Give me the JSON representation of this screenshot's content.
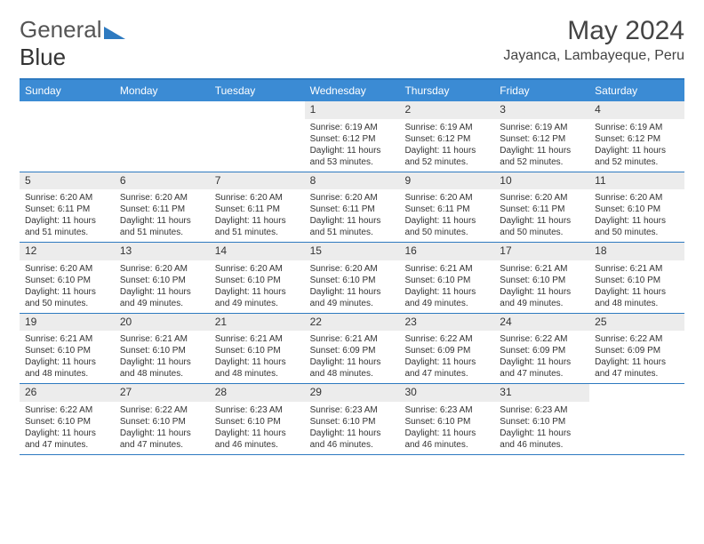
{
  "logo": {
    "text1": "General",
    "text2": "Blue"
  },
  "title": "May 2024",
  "location": "Jayanca, Lambayeque, Peru",
  "colors": {
    "header_bg": "#3b8bd4",
    "border": "#2e7ac0",
    "daynum_bg": "#ececec",
    "text": "#333333"
  },
  "day_headers": [
    "Sunday",
    "Monday",
    "Tuesday",
    "Wednesday",
    "Thursday",
    "Friday",
    "Saturday"
  ],
  "weeks": [
    [
      {
        "day": "",
        "sunrise": "",
        "sunset": "",
        "daylight": ""
      },
      {
        "day": "",
        "sunrise": "",
        "sunset": "",
        "daylight": ""
      },
      {
        "day": "",
        "sunrise": "",
        "sunset": "",
        "daylight": ""
      },
      {
        "day": "1",
        "sunrise": "Sunrise: 6:19 AM",
        "sunset": "Sunset: 6:12 PM",
        "daylight": "Daylight: 11 hours and 53 minutes."
      },
      {
        "day": "2",
        "sunrise": "Sunrise: 6:19 AM",
        "sunset": "Sunset: 6:12 PM",
        "daylight": "Daylight: 11 hours and 52 minutes."
      },
      {
        "day": "3",
        "sunrise": "Sunrise: 6:19 AM",
        "sunset": "Sunset: 6:12 PM",
        "daylight": "Daylight: 11 hours and 52 minutes."
      },
      {
        "day": "4",
        "sunrise": "Sunrise: 6:19 AM",
        "sunset": "Sunset: 6:12 PM",
        "daylight": "Daylight: 11 hours and 52 minutes."
      }
    ],
    [
      {
        "day": "5",
        "sunrise": "Sunrise: 6:20 AM",
        "sunset": "Sunset: 6:11 PM",
        "daylight": "Daylight: 11 hours and 51 minutes."
      },
      {
        "day": "6",
        "sunrise": "Sunrise: 6:20 AM",
        "sunset": "Sunset: 6:11 PM",
        "daylight": "Daylight: 11 hours and 51 minutes."
      },
      {
        "day": "7",
        "sunrise": "Sunrise: 6:20 AM",
        "sunset": "Sunset: 6:11 PM",
        "daylight": "Daylight: 11 hours and 51 minutes."
      },
      {
        "day": "8",
        "sunrise": "Sunrise: 6:20 AM",
        "sunset": "Sunset: 6:11 PM",
        "daylight": "Daylight: 11 hours and 51 minutes."
      },
      {
        "day": "9",
        "sunrise": "Sunrise: 6:20 AM",
        "sunset": "Sunset: 6:11 PM",
        "daylight": "Daylight: 11 hours and 50 minutes."
      },
      {
        "day": "10",
        "sunrise": "Sunrise: 6:20 AM",
        "sunset": "Sunset: 6:11 PM",
        "daylight": "Daylight: 11 hours and 50 minutes."
      },
      {
        "day": "11",
        "sunrise": "Sunrise: 6:20 AM",
        "sunset": "Sunset: 6:10 PM",
        "daylight": "Daylight: 11 hours and 50 minutes."
      }
    ],
    [
      {
        "day": "12",
        "sunrise": "Sunrise: 6:20 AM",
        "sunset": "Sunset: 6:10 PM",
        "daylight": "Daylight: 11 hours and 50 minutes."
      },
      {
        "day": "13",
        "sunrise": "Sunrise: 6:20 AM",
        "sunset": "Sunset: 6:10 PM",
        "daylight": "Daylight: 11 hours and 49 minutes."
      },
      {
        "day": "14",
        "sunrise": "Sunrise: 6:20 AM",
        "sunset": "Sunset: 6:10 PM",
        "daylight": "Daylight: 11 hours and 49 minutes."
      },
      {
        "day": "15",
        "sunrise": "Sunrise: 6:20 AM",
        "sunset": "Sunset: 6:10 PM",
        "daylight": "Daylight: 11 hours and 49 minutes."
      },
      {
        "day": "16",
        "sunrise": "Sunrise: 6:21 AM",
        "sunset": "Sunset: 6:10 PM",
        "daylight": "Daylight: 11 hours and 49 minutes."
      },
      {
        "day": "17",
        "sunrise": "Sunrise: 6:21 AM",
        "sunset": "Sunset: 6:10 PM",
        "daylight": "Daylight: 11 hours and 49 minutes."
      },
      {
        "day": "18",
        "sunrise": "Sunrise: 6:21 AM",
        "sunset": "Sunset: 6:10 PM",
        "daylight": "Daylight: 11 hours and 48 minutes."
      }
    ],
    [
      {
        "day": "19",
        "sunrise": "Sunrise: 6:21 AM",
        "sunset": "Sunset: 6:10 PM",
        "daylight": "Daylight: 11 hours and 48 minutes."
      },
      {
        "day": "20",
        "sunrise": "Sunrise: 6:21 AM",
        "sunset": "Sunset: 6:10 PM",
        "daylight": "Daylight: 11 hours and 48 minutes."
      },
      {
        "day": "21",
        "sunrise": "Sunrise: 6:21 AM",
        "sunset": "Sunset: 6:10 PM",
        "daylight": "Daylight: 11 hours and 48 minutes."
      },
      {
        "day": "22",
        "sunrise": "Sunrise: 6:21 AM",
        "sunset": "Sunset: 6:09 PM",
        "daylight": "Daylight: 11 hours and 48 minutes."
      },
      {
        "day": "23",
        "sunrise": "Sunrise: 6:22 AM",
        "sunset": "Sunset: 6:09 PM",
        "daylight": "Daylight: 11 hours and 47 minutes."
      },
      {
        "day": "24",
        "sunrise": "Sunrise: 6:22 AM",
        "sunset": "Sunset: 6:09 PM",
        "daylight": "Daylight: 11 hours and 47 minutes."
      },
      {
        "day": "25",
        "sunrise": "Sunrise: 6:22 AM",
        "sunset": "Sunset: 6:09 PM",
        "daylight": "Daylight: 11 hours and 47 minutes."
      }
    ],
    [
      {
        "day": "26",
        "sunrise": "Sunrise: 6:22 AM",
        "sunset": "Sunset: 6:10 PM",
        "daylight": "Daylight: 11 hours and 47 minutes."
      },
      {
        "day": "27",
        "sunrise": "Sunrise: 6:22 AM",
        "sunset": "Sunset: 6:10 PM",
        "daylight": "Daylight: 11 hours and 47 minutes."
      },
      {
        "day": "28",
        "sunrise": "Sunrise: 6:23 AM",
        "sunset": "Sunset: 6:10 PM",
        "daylight": "Daylight: 11 hours and 46 minutes."
      },
      {
        "day": "29",
        "sunrise": "Sunrise: 6:23 AM",
        "sunset": "Sunset: 6:10 PM",
        "daylight": "Daylight: 11 hours and 46 minutes."
      },
      {
        "day": "30",
        "sunrise": "Sunrise: 6:23 AM",
        "sunset": "Sunset: 6:10 PM",
        "daylight": "Daylight: 11 hours and 46 minutes."
      },
      {
        "day": "31",
        "sunrise": "Sunrise: 6:23 AM",
        "sunset": "Sunset: 6:10 PM",
        "daylight": "Daylight: 11 hours and 46 minutes."
      },
      {
        "day": "",
        "sunrise": "",
        "sunset": "",
        "daylight": ""
      }
    ]
  ]
}
